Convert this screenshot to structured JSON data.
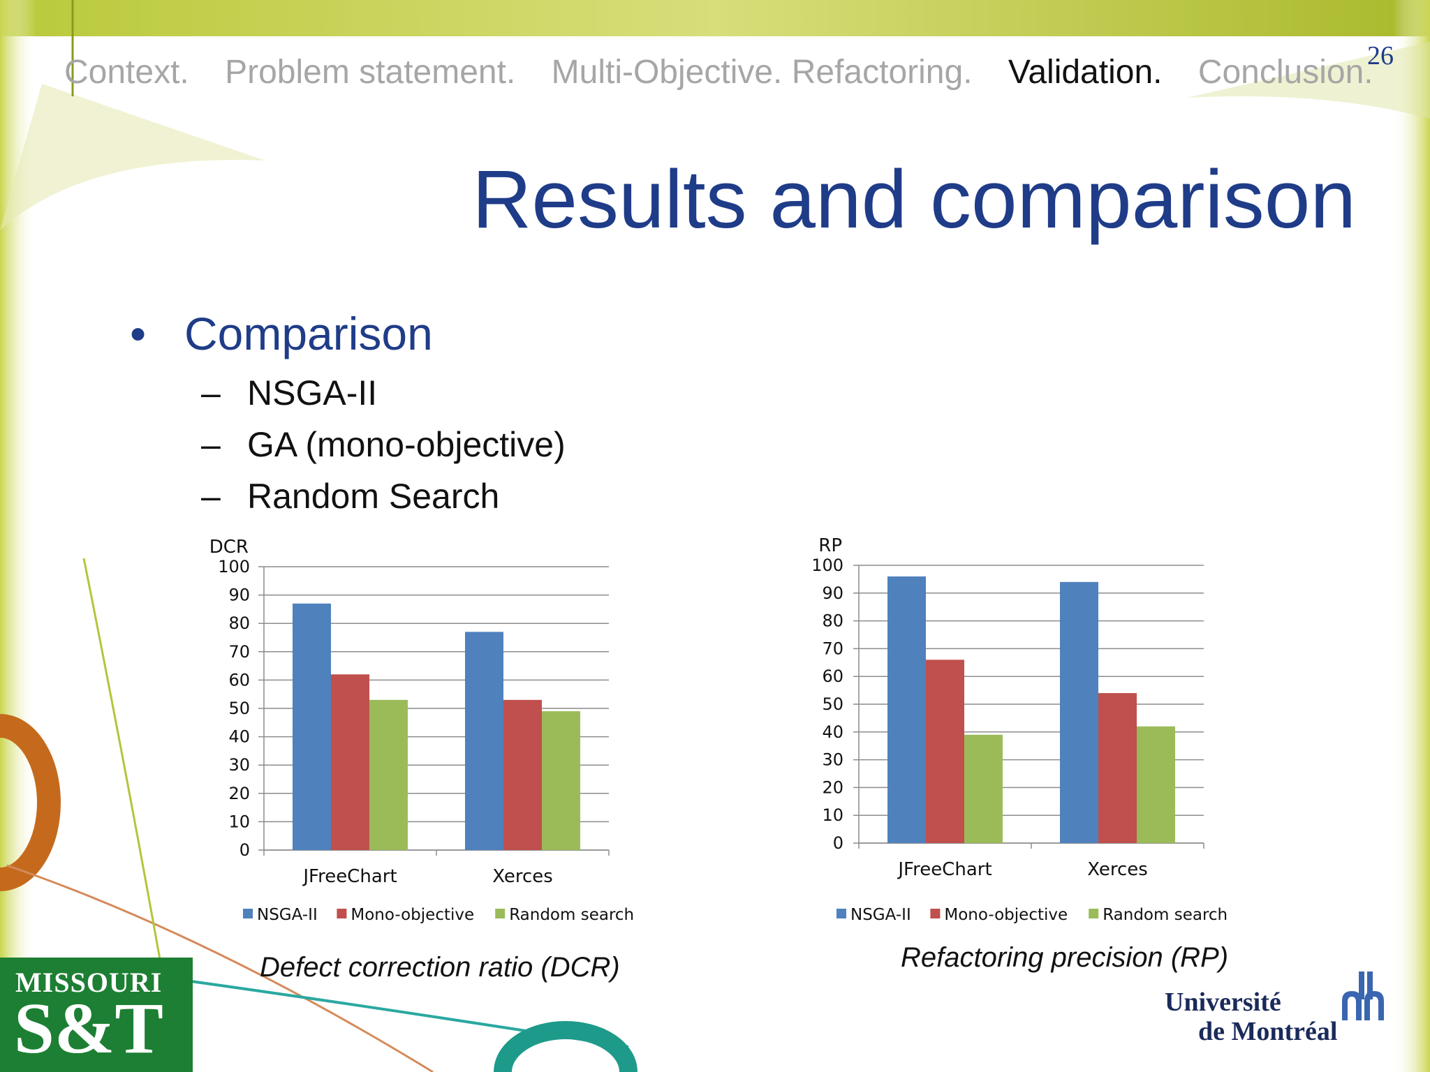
{
  "slide": {
    "page_number": "26",
    "nav": [
      {
        "label": "Context.",
        "active": false
      },
      {
        "label": "Problem statement.",
        "active": false
      },
      {
        "label": "Multi-Objective. Refactoring.",
        "active": false
      },
      {
        "label": "Validation.",
        "active": true
      },
      {
        "label": "Conclusion.",
        "active": false
      }
    ],
    "title": "Results and comparison",
    "bullet": "Comparison",
    "subitems": [
      "NSGA-II",
      "GA (mono-objective)",
      "Random Search"
    ]
  },
  "logos": {
    "left_line1": "MISSOURI",
    "left_line2": "S&T",
    "right_line1": "Université",
    "right_line2": "de Montréal"
  },
  "chart_data": [
    {
      "type": "bar",
      "title": "",
      "ylabel": "DCR",
      "xlabel": "",
      "caption": "Defect correction ratio (DCR)",
      "categories": [
        "JFreeChart",
        "Xerces"
      ],
      "ylim": [
        0,
        100
      ],
      "yticks": [
        0,
        10,
        20,
        30,
        40,
        50,
        60,
        70,
        80,
        90,
        100
      ],
      "grid": true,
      "legend": "bottom",
      "series": [
        {
          "name": "NSGA-II",
          "color": "#4f81bd",
          "values": [
            87,
            77
          ]
        },
        {
          "name": "Mono-objective",
          "color": "#c0504d",
          "values": [
            62,
            53
          ]
        },
        {
          "name": "Random search",
          "color": "#9bbb59",
          "values": [
            53,
            49
          ]
        }
      ]
    },
    {
      "type": "bar",
      "title": "",
      "ylabel": "RP",
      "xlabel": "",
      "caption": "Refactoring precision (RP)",
      "categories": [
        "JFreeChart",
        "Xerces"
      ],
      "ylim": [
        0,
        100
      ],
      "yticks": [
        0,
        10,
        20,
        30,
        40,
        50,
        60,
        70,
        80,
        90,
        100
      ],
      "grid": true,
      "legend": "bottom",
      "series": [
        {
          "name": "NSGA-II",
          "color": "#4f81bd",
          "values": [
            96,
            94
          ]
        },
        {
          "name": "Mono-objective",
          "color": "#c0504d",
          "values": [
            66,
            54
          ]
        },
        {
          "name": "Random search",
          "color": "#9bbb59",
          "values": [
            39,
            42
          ]
        }
      ]
    }
  ]
}
